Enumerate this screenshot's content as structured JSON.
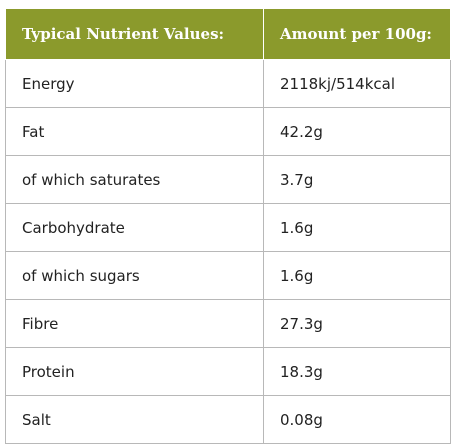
{
  "table": {
    "header": [
      "Typical Nutrient Values:",
      "Amount per 100g:"
    ],
    "rows": [
      [
        "Energy",
        "2118kj/514kcal"
      ],
      [
        "Fat",
        "42.2g"
      ],
      [
        "of which saturates",
        "3.7g"
      ],
      [
        "Carbohydrate",
        "1.6g"
      ],
      [
        "of which sugars",
        "1.6g"
      ],
      [
        "Fibre",
        "27.3g"
      ],
      [
        "Protein",
        "18.3g"
      ],
      [
        "Salt",
        "0.08g"
      ]
    ]
  }
}
